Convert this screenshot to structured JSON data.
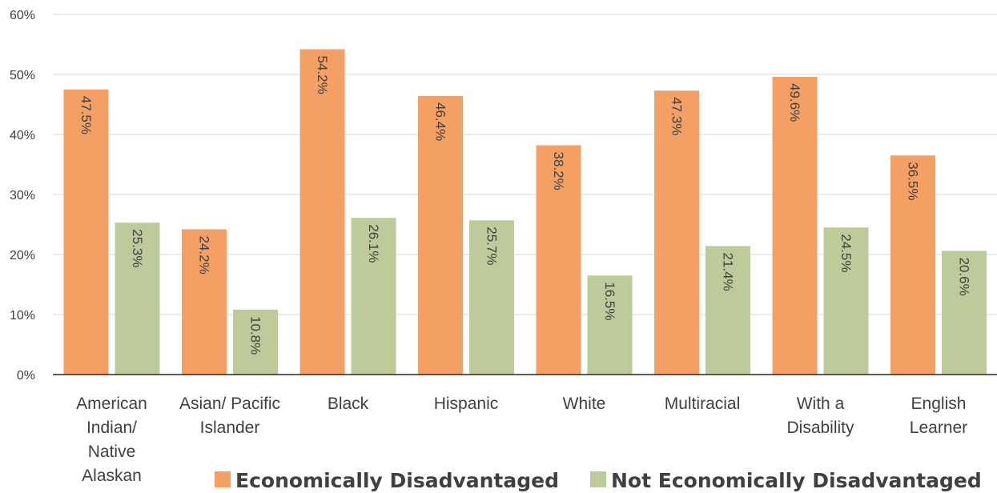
{
  "chart_data": {
    "type": "bar",
    "categories": [
      [
        "American",
        "Indian/",
        "Native",
        "Alaskan"
      ],
      [
        "Asian/ Pacific",
        "Islander"
      ],
      [
        "Black"
      ],
      [
        "Hispanic"
      ],
      [
        "White"
      ],
      [
        "Multiracial"
      ],
      [
        "With a",
        "Disability"
      ],
      [
        "English",
        "Learner"
      ]
    ],
    "series": [
      {
        "name": "Economically Disadvantaged",
        "color": "#F4A064",
        "values": [
          47.5,
          24.2,
          54.2,
          46.4,
          38.2,
          47.3,
          49.6,
          36.5
        ],
        "labels": [
          "47.5%",
          "24.2%",
          "54.2%",
          "46.4%",
          "38.2%",
          "47.3%",
          "49.6%",
          "36.5%"
        ]
      },
      {
        "name": "Not Economically Disadvantaged",
        "color": "#BDCB9A",
        "values": [
          25.3,
          10.8,
          26.1,
          25.7,
          16.5,
          21.4,
          24.5,
          20.6
        ],
        "labels": [
          "25.3%",
          "10.8%",
          "26.1%",
          "25.7%",
          "16.5%",
          "21.4%",
          "24.5%",
          "20.6%"
        ]
      }
    ],
    "y_ticks": [
      0,
      10,
      20,
      30,
      40,
      50,
      60
    ],
    "y_tick_labels": [
      "0%",
      "10%",
      "20%",
      "30%",
      "40%",
      "50%",
      "60%"
    ],
    "ylim": [
      0,
      60
    ],
    "grid": true,
    "legend_position": "bottom",
    "title": "",
    "xlabel": "",
    "ylabel": ""
  }
}
